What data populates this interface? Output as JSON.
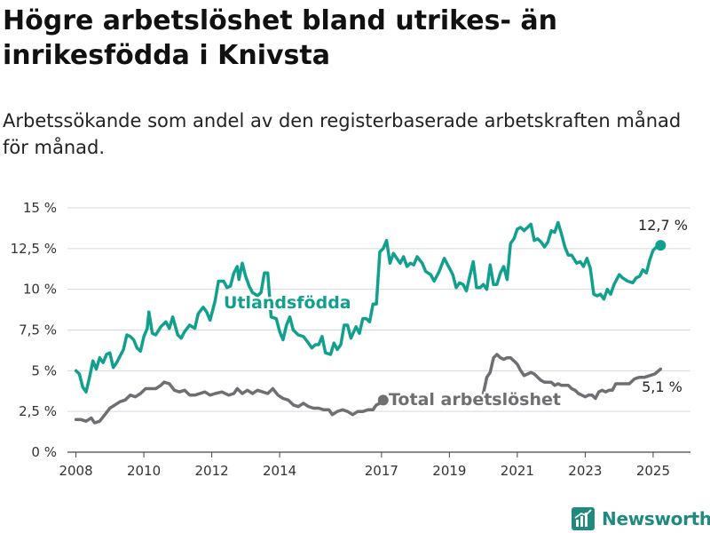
{
  "title": "Högre arbetslöshet bland utrikes- än inrikesfödda i Knivsta",
  "subtitle": "Arbetssökande som andel av den registerbaserade arbetskraften månad för månad.",
  "brand": {
    "name": "Newsworthy",
    "icon": "newsworthy-logo-icon",
    "color": "#1f8a7d"
  },
  "chart_data": {
    "type": "line",
    "title": "Högre arbetslöshet bland utrikes- än inrikesfödda i Knivsta",
    "subtitle": "Arbetssökande som andel av den registerbaserade arbetskraften månad för månad.",
    "xlabel": "",
    "ylabel": "",
    "xlim": [
      2007.75,
      2026.1
    ],
    "ylim": [
      0,
      15
    ],
    "x_ticks": [
      2008,
      2010,
      2012,
      2014,
      2017,
      2019,
      2021,
      2023,
      2025
    ],
    "x_tick_labels": [
      "2008",
      "2010",
      "2012",
      "2014",
      "2017",
      "2019",
      "2021",
      "2023",
      "2025"
    ],
    "y_ticks": [
      0,
      2.5,
      5,
      7.5,
      10,
      12.5,
      15
    ],
    "y_tick_labels": [
      "0 %",
      "2,5 %",
      "5 %",
      "7,5 %",
      "10 %",
      "12,5 %",
      "15 %"
    ],
    "grid": "horizontal",
    "legend": "none (direct labels)",
    "series": [
      {
        "name": "Utlandsfödda",
        "color": "#12a08e",
        "end_label": "12,7 %",
        "points": [
          [
            2008.0,
            5.0
          ],
          [
            2008.1,
            4.8
          ],
          [
            2008.2,
            4.0
          ],
          [
            2008.3,
            3.7
          ],
          [
            2008.4,
            4.6
          ],
          [
            2008.5,
            5.6
          ],
          [
            2008.6,
            5.1
          ],
          [
            2008.7,
            5.8
          ],
          [
            2008.8,
            5.5
          ],
          [
            2008.9,
            6.0
          ],
          [
            2009.0,
            6.1
          ],
          [
            2009.1,
            5.2
          ],
          [
            2009.2,
            5.5
          ],
          [
            2009.3,
            5.9
          ],
          [
            2009.4,
            6.3
          ],
          [
            2009.5,
            7.2
          ],
          [
            2009.6,
            7.1
          ],
          [
            2009.7,
            6.9
          ],
          [
            2009.8,
            6.4
          ],
          [
            2009.9,
            6.2
          ],
          [
            2010.0,
            7.1
          ],
          [
            2010.1,
            7.6
          ],
          [
            2010.15,
            8.6
          ],
          [
            2010.25,
            7.3
          ],
          [
            2010.35,
            7.2
          ],
          [
            2010.5,
            7.7
          ],
          [
            2010.65,
            8.0
          ],
          [
            2010.75,
            7.6
          ],
          [
            2010.85,
            8.3
          ],
          [
            2011.0,
            7.2
          ],
          [
            2011.1,
            7.0
          ],
          [
            2011.2,
            7.4
          ],
          [
            2011.35,
            7.8
          ],
          [
            2011.5,
            7.6
          ],
          [
            2011.6,
            8.5
          ],
          [
            2011.75,
            8.9
          ],
          [
            2011.85,
            8.6
          ],
          [
            2011.95,
            8.1
          ],
          [
            2012.1,
            9.3
          ],
          [
            2012.2,
            10.5
          ],
          [
            2012.35,
            10.5
          ],
          [
            2012.45,
            10.1
          ],
          [
            2012.55,
            10.2
          ],
          [
            2012.65,
            11.0
          ],
          [
            2012.75,
            11.4
          ],
          [
            2012.8,
            10.6
          ],
          [
            2012.9,
            11.6
          ],
          [
            2013.0,
            10.8
          ],
          [
            2013.1,
            10.2
          ],
          [
            2013.2,
            9.8
          ],
          [
            2013.35,
            9.6
          ],
          [
            2013.45,
            9.8
          ],
          [
            2013.55,
            11.0
          ],
          [
            2013.65,
            11.0
          ],
          [
            2013.75,
            8.3
          ],
          [
            2013.9,
            8.2
          ],
          [
            2014.0,
            7.4
          ],
          [
            2014.1,
            6.9
          ],
          [
            2014.2,
            7.8
          ],
          [
            2014.3,
            8.3
          ],
          [
            2014.4,
            7.5
          ],
          [
            2014.55,
            7.2
          ],
          [
            2014.7,
            7.1
          ],
          [
            2014.85,
            6.7
          ],
          [
            2014.95,
            6.4
          ],
          [
            2015.05,
            6.6
          ],
          [
            2015.15,
            6.6
          ],
          [
            2015.25,
            7.1
          ],
          [
            2015.35,
            6.1
          ],
          [
            2015.5,
            6.0
          ],
          [
            2015.6,
            6.7
          ],
          [
            2015.7,
            6.3
          ],
          [
            2015.8,
            6.6
          ],
          [
            2015.9,
            7.8
          ],
          [
            2016.0,
            7.8
          ],
          [
            2016.1,
            7.0
          ],
          [
            2016.25,
            7.7
          ],
          [
            2016.35,
            7.3
          ],
          [
            2016.45,
            8.2
          ],
          [
            2016.55,
            8.2
          ],
          [
            2016.65,
            8.0
          ],
          [
            2016.75,
            9.1
          ],
          [
            2016.85,
            9.1
          ],
          [
            2016.95,
            12.3
          ],
          [
            2017.05,
            12.5
          ],
          [
            2017.15,
            13.0
          ],
          [
            2017.25,
            11.6
          ],
          [
            2017.35,
            12.2
          ],
          [
            2017.45,
            11.9
          ],
          [
            2017.55,
            11.6
          ],
          [
            2017.65,
            12.0
          ],
          [
            2017.75,
            11.4
          ],
          [
            2017.85,
            11.6
          ],
          [
            2017.95,
            11.5
          ],
          [
            2018.05,
            12.0
          ],
          [
            2018.2,
            11.6
          ],
          [
            2018.3,
            11.1
          ],
          [
            2018.45,
            10.9
          ],
          [
            2018.55,
            10.5
          ],
          [
            2018.7,
            11.1
          ],
          [
            2018.85,
            11.9
          ],
          [
            2019.0,
            11.3
          ],
          [
            2019.1,
            10.9
          ],
          [
            2019.2,
            10.1
          ],
          [
            2019.3,
            10.4
          ],
          [
            2019.4,
            10.3
          ],
          [
            2019.5,
            9.9
          ],
          [
            2019.6,
            10.8
          ],
          [
            2019.7,
            11.7
          ],
          [
            2019.8,
            10.1
          ],
          [
            2019.9,
            10.1
          ],
          [
            2020.0,
            10.3
          ],
          [
            2020.1,
            10.0
          ],
          [
            2020.2,
            11.5
          ],
          [
            2020.3,
            10.3
          ],
          [
            2020.4,
            10.3
          ],
          [
            2020.5,
            11.0
          ],
          [
            2020.6,
            11.4
          ],
          [
            2020.7,
            10.6
          ],
          [
            2020.8,
            12.8
          ],
          [
            2020.9,
            13.1
          ],
          [
            2021.0,
            13.7
          ],
          [
            2021.1,
            13.8
          ],
          [
            2021.2,
            13.6
          ],
          [
            2021.3,
            13.8
          ],
          [
            2021.4,
            14.0
          ],
          [
            2021.5,
            13.0
          ],
          [
            2021.6,
            13.1
          ],
          [
            2021.7,
            12.9
          ],
          [
            2021.8,
            12.6
          ],
          [
            2021.9,
            12.9
          ],
          [
            2022.0,
            13.6
          ],
          [
            2022.1,
            13.5
          ],
          [
            2022.2,
            14.1
          ],
          [
            2022.3,
            13.4
          ],
          [
            2022.4,
            12.6
          ],
          [
            2022.5,
            12.1
          ],
          [
            2022.6,
            12.1
          ],
          [
            2022.75,
            11.6
          ],
          [
            2022.85,
            11.7
          ],
          [
            2022.95,
            11.4
          ],
          [
            2023.05,
            11.9
          ],
          [
            2023.15,
            11.3
          ],
          [
            2023.25,
            9.7
          ],
          [
            2023.35,
            9.6
          ],
          [
            2023.45,
            9.7
          ],
          [
            2023.55,
            9.4
          ],
          [
            2023.65,
            10.0
          ],
          [
            2023.75,
            9.7
          ],
          [
            2023.85,
            10.3
          ],
          [
            2024.0,
            10.9
          ],
          [
            2024.1,
            10.7
          ],
          [
            2024.25,
            10.5
          ],
          [
            2024.4,
            10.4
          ],
          [
            2024.5,
            10.7
          ],
          [
            2024.6,
            10.8
          ],
          [
            2024.7,
            11.2
          ],
          [
            2024.8,
            11.0
          ],
          [
            2024.9,
            11.8
          ],
          [
            2025.0,
            12.4
          ],
          [
            2025.1,
            12.6
          ],
          [
            2025.22,
            12.7
          ]
        ]
      },
      {
        "name": "Total arbetslöshet",
        "color": "#6e6e73",
        "end_label": "5,1 %",
        "points": [
          [
            2008.0,
            2.0
          ],
          [
            2008.15,
            2.0
          ],
          [
            2008.3,
            1.9
          ],
          [
            2008.45,
            2.1
          ],
          [
            2008.55,
            1.8
          ],
          [
            2008.7,
            1.9
          ],
          [
            2008.85,
            2.3
          ],
          [
            2009.0,
            2.7
          ],
          [
            2009.15,
            2.9
          ],
          [
            2009.3,
            3.1
          ],
          [
            2009.45,
            3.2
          ],
          [
            2009.6,
            3.5
          ],
          [
            2009.75,
            3.4
          ],
          [
            2009.9,
            3.6
          ],
          [
            2010.05,
            3.9
          ],
          [
            2010.2,
            3.9
          ],
          [
            2010.35,
            3.9
          ],
          [
            2010.5,
            4.1
          ],
          [
            2010.6,
            4.3
          ],
          [
            2010.75,
            4.2
          ],
          [
            2010.9,
            3.8
          ],
          [
            2011.05,
            3.7
          ],
          [
            2011.2,
            3.8
          ],
          [
            2011.35,
            3.5
          ],
          [
            2011.5,
            3.5
          ],
          [
            2011.65,
            3.6
          ],
          [
            2011.8,
            3.7
          ],
          [
            2011.95,
            3.5
          ],
          [
            2012.1,
            3.6
          ],
          [
            2012.3,
            3.7
          ],
          [
            2012.5,
            3.5
          ],
          [
            2012.65,
            3.6
          ],
          [
            2012.75,
            3.9
          ],
          [
            2012.9,
            3.6
          ],
          [
            2013.05,
            3.8
          ],
          [
            2013.2,
            3.6
          ],
          [
            2013.35,
            3.8
          ],
          [
            2013.5,
            3.7
          ],
          [
            2013.65,
            3.6
          ],
          [
            2013.8,
            3.9
          ],
          [
            2013.95,
            3.5
          ],
          [
            2014.1,
            3.3
          ],
          [
            2014.25,
            3.2
          ],
          [
            2014.4,
            2.9
          ],
          [
            2014.55,
            2.8
          ],
          [
            2014.7,
            3.0
          ],
          [
            2014.85,
            2.8
          ],
          [
            2015.0,
            2.7
          ],
          [
            2015.15,
            2.7
          ],
          [
            2015.3,
            2.6
          ],
          [
            2015.45,
            2.6
          ],
          [
            2015.55,
            2.3
          ],
          [
            2015.7,
            2.5
          ],
          [
            2015.85,
            2.6
          ],
          [
            2016.0,
            2.5
          ],
          [
            2016.15,
            2.3
          ],
          [
            2016.3,
            2.5
          ],
          [
            2016.45,
            2.5
          ],
          [
            2016.6,
            2.6
          ],
          [
            2016.75,
            2.6
          ],
          [
            2016.85,
            2.9
          ],
          [
            2016.95,
            3.0
          ],
          [
            2017.05,
            3.2
          ]
        ]
      },
      {
        "name": "Total arbetslöshet",
        "color": "#6e6e73",
        "points": [
          [
            2020.0,
            3.6
          ],
          [
            2020.1,
            4.6
          ],
          [
            2020.2,
            4.9
          ],
          [
            2020.3,
            5.8
          ],
          [
            2020.4,
            6.0
          ],
          [
            2020.5,
            5.8
          ],
          [
            2020.6,
            5.7
          ],
          [
            2020.7,
            5.8
          ],
          [
            2020.8,
            5.8
          ],
          [
            2020.9,
            5.6
          ],
          [
            2021.0,
            5.4
          ],
          [
            2021.1,
            5.0
          ],
          [
            2021.2,
            4.7
          ],
          [
            2021.3,
            4.8
          ],
          [
            2021.4,
            4.9
          ],
          [
            2021.5,
            4.8
          ],
          [
            2021.6,
            4.6
          ],
          [
            2021.7,
            4.4
          ],
          [
            2021.8,
            4.3
          ],
          [
            2021.9,
            4.3
          ],
          [
            2022.0,
            4.3
          ],
          [
            2022.1,
            4.1
          ],
          [
            2022.2,
            4.2
          ],
          [
            2022.3,
            4.1
          ],
          [
            2022.4,
            4.1
          ],
          [
            2022.5,
            4.1
          ],
          [
            2022.6,
            3.9
          ],
          [
            2022.7,
            3.8
          ],
          [
            2022.8,
            3.6
          ],
          [
            2022.9,
            3.5
          ],
          [
            2023.0,
            3.4
          ],
          [
            2023.1,
            3.5
          ],
          [
            2023.2,
            3.5
          ],
          [
            2023.3,
            3.3
          ],
          [
            2023.4,
            3.7
          ],
          [
            2023.5,
            3.8
          ],
          [
            2023.6,
            3.7
          ],
          [
            2023.7,
            3.8
          ],
          [
            2023.8,
            3.8
          ],
          [
            2023.9,
            4.2
          ],
          [
            2024.0,
            4.2
          ],
          [
            2024.1,
            4.2
          ],
          [
            2024.3,
            4.2
          ],
          [
            2024.45,
            4.5
          ],
          [
            2024.6,
            4.6
          ],
          [
            2024.75,
            4.6
          ],
          [
            2024.9,
            4.7
          ],
          [
            2025.05,
            4.8
          ],
          [
            2025.22,
            5.1
          ]
        ]
      }
    ]
  }
}
